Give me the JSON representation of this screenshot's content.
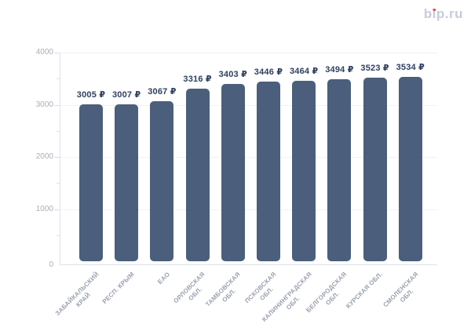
{
  "page": {
    "background_color": "#ffffff"
  },
  "brand": {
    "text": "bip.ru",
    "text_color": "#c6ccda",
    "dot_color": "#e2574c"
  },
  "chart_data": {
    "type": "bar",
    "title": "",
    "xlabel": "",
    "ylabel": "",
    "categories": [
      "ЗАБАЙКАЛЬСКИЙ\nКРАЙ",
      "РЕСП. КРЫМ",
      "ЕАО",
      "ОРЛОВСКАЯ\nОБЛ.",
      "ТАМБОВСКАЯ\nОБЛ.",
      "ПСКОВСКАЯ\nОБЛ.",
      "КАЛИНИНГРАДСКАЯ\nОБЛ.",
      "БЕЛГОРОДСКАЯ\nОБЛ.",
      "КУРСКАЯ ОБЛ.",
      "СМОЛЕНСКАЯ\nОБЛ."
    ],
    "values": [
      3005,
      3007,
      3067,
      3316,
      3403,
      3446,
      3464,
      3494,
      3523,
      3534
    ],
    "data_labels": [
      "3005 ₽",
      "3007 ₽",
      "3067 ₽",
      "3316 ₽",
      "3403 ₽",
      "3446 ₽",
      "3464 ₽",
      "3494 ₽",
      "3523 ₽",
      "3534 ₽"
    ],
    "ylim": [
      0,
      4000
    ],
    "yticks": [
      0,
      1000,
      2000,
      3000,
      4000
    ],
    "ytick_labels": [
      "0",
      "1000",
      "2000",
      "3000",
      "4000"
    ],
    "minor_yticks": [
      500,
      1500,
      2500,
      3500
    ],
    "grid": "horizontal dotted lines at major ticks",
    "legend": "none",
    "bar_color": "#4b5f7c",
    "value_label_color": "#2f4060",
    "ytick_label_color": "#a9aeb9",
    "category_label_color": "#99a1b0"
  }
}
